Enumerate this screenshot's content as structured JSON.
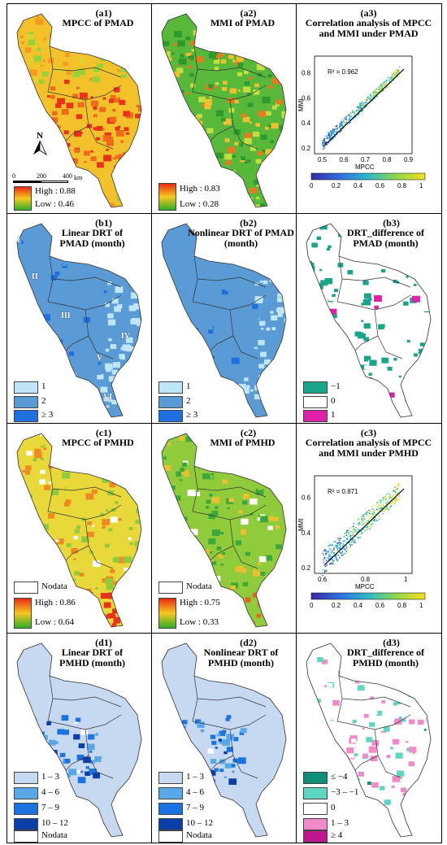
{
  "rows": [
    {
      "cells": [
        {
          "id": "(a1)",
          "title": "MPCC of PMAD",
          "legend_high": "High : 0.88",
          "legend_low": "Low : 0.46",
          "scale_labels": [
            "0",
            "200",
            "400"
          ],
          "scale_unit": "km",
          "north": "N"
        },
        {
          "id": "(a2)",
          "title": "MMI of PMAD",
          "legend_high": "High : 0.83",
          "legend_low": "Low : 0.28"
        },
        {
          "id": "(a3)",
          "title": "Correlation analysis of MPCC and MMI under PMAD",
          "r2": "R² = 0.962",
          "xlabel": "MPCC",
          "ylabel": "MMI",
          "yticks": [
            "0.2",
            "0.4",
            "0.6",
            "0.8"
          ],
          "xticks": [
            "0.5",
            "0.6",
            "0.7",
            "0.8",
            "0.9"
          ],
          "cbar_ticks": [
            "0",
            "0.2",
            "0.4",
            "0.6",
            "0.8",
            "1"
          ]
        }
      ]
    },
    {
      "cells": [
        {
          "id": "(b1)",
          "title": "Linear DRT of PMAD (month)",
          "legend": [
            "1",
            "2",
            "≥ 3"
          ],
          "regions": [
            "I",
            "II",
            "III",
            "IV",
            "V",
            "VI"
          ]
        },
        {
          "id": "(b2)",
          "title": "Nonlinear DRT of PMAD (month)",
          "legend": [
            "1",
            "2",
            "≥ 3"
          ]
        },
        {
          "id": "(b3)",
          "title": "DRT_difference of PMAD (month)",
          "legend": [
            "−1",
            "0",
            "1"
          ]
        }
      ]
    },
    {
      "cells": [
        {
          "id": "(c1)",
          "title": "MPCC of PMHD",
          "nodata": "Nodata",
          "legend_high": "High : 0.86",
          "legend_low": "Low : 0.64"
        },
        {
          "id": "(c2)",
          "title": "MMI of PMHD",
          "nodata": "Nodata",
          "legend_high": "High : 0.75",
          "legend_low": "Low : 0.33"
        },
        {
          "id": "(c3)",
          "title": "Correlation analysis of MPCC and MMI under PMHD",
          "r2": "R² = 0.871",
          "xlabel": "MPCC",
          "ylabel": "MMI",
          "yticks": [
            "0.2",
            "0.4",
            "0.6"
          ],
          "xticks": [
            "0.6",
            "0.8",
            "1"
          ],
          "cbar_ticks": [
            "0",
            "0.2",
            "0.4",
            "0.6",
            "0.8",
            "1"
          ]
        }
      ]
    },
    {
      "cells": [
        {
          "id": "(d1)",
          "title": "Linear DRT of PMHD (month)",
          "legend": [
            "1 – 3",
            "4 – 6",
            "7 – 9",
            "10 – 12",
            "Nodata"
          ]
        },
        {
          "id": "(d2)",
          "title": "Nonlinear DRT of PMHD (month)",
          "legend": [
            "1 – 3",
            "4 – 6",
            "7 – 9",
            "10 – 12",
            "Nodata"
          ]
        },
        {
          "id": "(d3)",
          "title": "DRT_difference of PMHD (month)",
          "legend": [
            "≤ −4",
            "−3 – −1",
            "0",
            "1 – 3",
            "≥ 4"
          ]
        }
      ]
    }
  ],
  "colors": {
    "gradient_high": "#e82a14",
    "gradient_mid": "#f6c81e",
    "gradient_low": "#2fae2a",
    "drt1": "#bfe6f7",
    "drt2": "#5b9bd5",
    "drt3": "#1f6fe0",
    "diff_neg": "#1aa58a",
    "diff_zero": "#ffffff",
    "diff_pos": "#e020a8",
    "d_1_3": "#c6d9f1",
    "d_4_6": "#5aa7e8",
    "d_7_9": "#1a73e0",
    "d_10_12": "#0b3fa8",
    "dd_le_m4": "#0f8f78",
    "dd_m3_m1": "#5fd6c0",
    "dd_1_3": "#f08ac8",
    "dd_ge_4": "#c2168f"
  }
}
